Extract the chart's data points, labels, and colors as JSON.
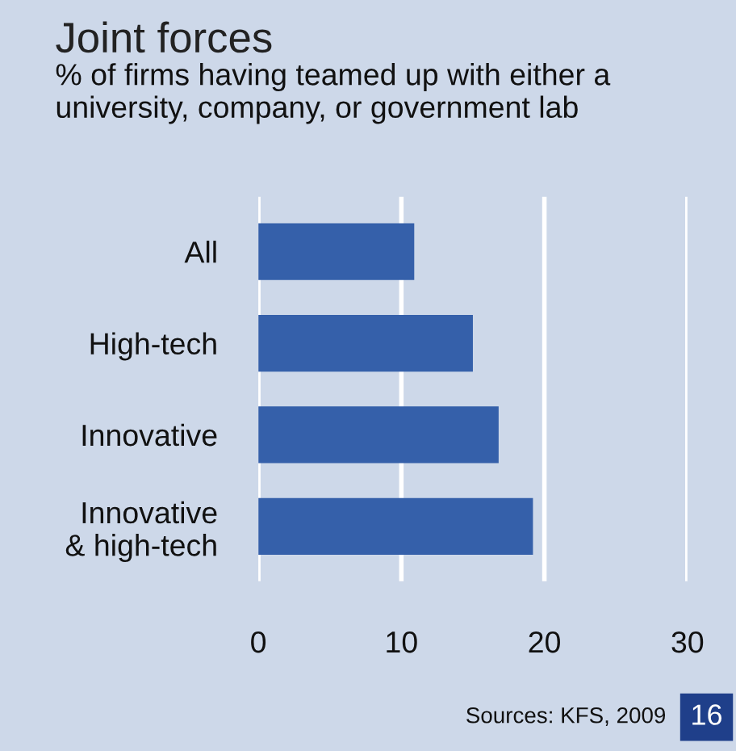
{
  "chart_data": {
    "type": "bar",
    "orientation": "horizontal",
    "title": "Joint forces",
    "subtitle": "% of firms having teamed up with either a university, company, or government lab",
    "categories": [
      "All",
      "High-tech",
      "Innovative",
      "Innovative\n& high-tech"
    ],
    "values": [
      10.9,
      15.0,
      16.8,
      19.2
    ],
    "color": "#3560aa",
    "xlim": [
      0,
      30
    ],
    "xticks": [
      0,
      10,
      20,
      30
    ],
    "grid": "x",
    "annotations": [
      "Sources: KFS, 2009",
      "16"
    ]
  }
}
